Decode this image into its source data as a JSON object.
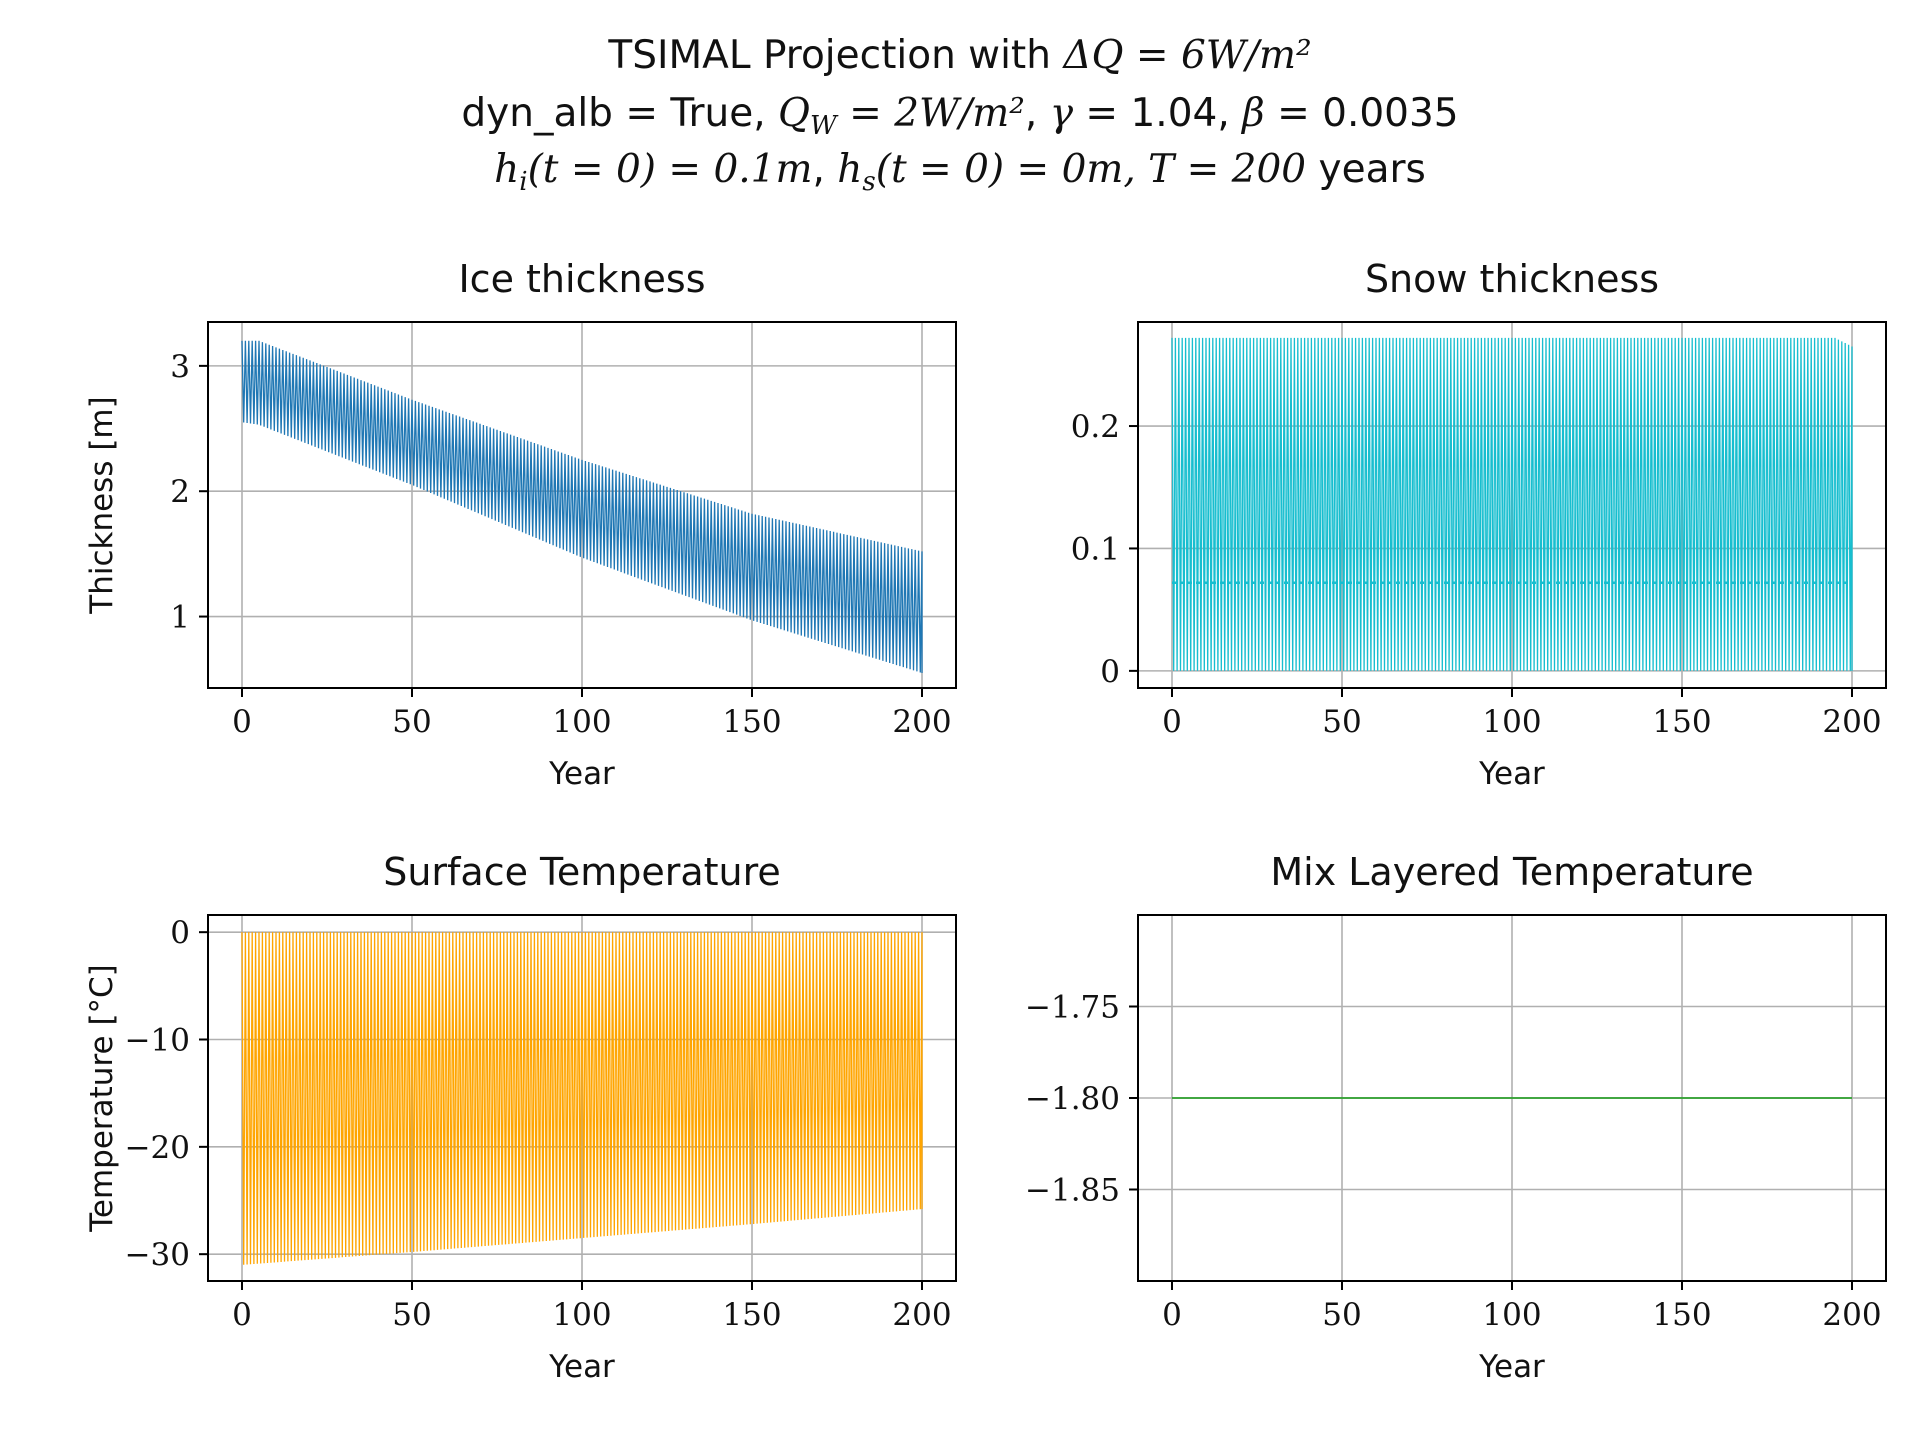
{
  "figure": {
    "title_line1_text": "TSIMAL Projection with ",
    "title_line1_math": "ΔQ = 6W/m²",
    "title_line2_a": "dyn_alb = True, ",
    "title_line2_qw": "Q",
    "title_line2_qw_sub": "W",
    "title_line2_qw_rest": " = 2W/m²",
    "title_line2_b": ", ",
    "title_line2_gamma": "γ",
    "title_line2_c": " = 1.04, ",
    "title_line2_beta": "β",
    "title_line2_d": " = 0.0035",
    "title_line3_hi": "h",
    "title_line3_hi_sub": "i",
    "title_line3_hi_rest": "(t = 0) = 0.1m",
    "title_line3_sep": ", ",
    "title_line3_hs": "h",
    "title_line3_hs_sub": "s",
    "title_line3_hs_rest": "(t = 0) = 0m, T = 200",
    "title_line3_years": " years"
  },
  "chart_data": [
    {
      "type": "line",
      "title": "Ice thickness",
      "xlabel": "Year",
      "ylabel": "Thickness [m]",
      "xlim": [
        -10,
        210
      ],
      "ylim": [
        0.43,
        3.35
      ],
      "xticks": [
        0,
        50,
        100,
        150,
        200
      ],
      "yticks": [
        1,
        2,
        3
      ],
      "grid": true,
      "color": "#1f77b4",
      "series": [
        {
          "x": [
            0,
            5,
            50,
            100,
            150,
            200
          ],
          "upper": [
            3.2,
            3.2,
            2.73,
            2.25,
            1.82,
            1.52
          ],
          "lower": [
            2.55,
            2.53,
            2.05,
            1.47,
            0.97,
            0.55
          ]
        }
      ],
      "cycles_per_year": 1
    },
    {
      "type": "line",
      "title": "Snow thickness",
      "xlabel": "Year",
      "ylabel": "",
      "xlim": [
        -10,
        210
      ],
      "ylim": [
        -0.014,
        0.285
      ],
      "xticks": [
        0,
        50,
        100,
        150,
        200
      ],
      "yticks": [
        0.0,
        0.1,
        0.2
      ],
      "grid": true,
      "color": "#17becf",
      "series": [
        {
          "x": [
            0,
            195,
            200
          ],
          "upper": [
            0.272,
            0.272,
            0.265
          ],
          "lower": [
            0.0,
            0.0,
            0.0
          ],
          "mid": 0.072
        }
      ],
      "cycles_per_year": 1
    },
    {
      "type": "line",
      "title": "Surface Temperature",
      "xlabel": "Year",
      "ylabel": "Temperature [°C]",
      "xlim": [
        -10,
        210
      ],
      "ylim": [
        -32.5,
        1.6
      ],
      "xticks": [
        0,
        50,
        100,
        150,
        200
      ],
      "yticks": [
        0,
        -10,
        -20,
        -30
      ],
      "grid": true,
      "color": "#ffa500",
      "series": [
        {
          "x": [
            0,
            50,
            100,
            150,
            200
          ],
          "upper": [
            0,
            0,
            0,
            0,
            0
          ],
          "lower": [
            -31.0,
            -29.8,
            -28.5,
            -27.2,
            -25.8
          ]
        }
      ],
      "cycles_per_year": 1
    },
    {
      "type": "line",
      "title": "Mix Layered Temperature",
      "xlabel": "Year",
      "ylabel": "",
      "xlim": [
        -10,
        210
      ],
      "ylim": [
        -1.9,
        -1.7
      ],
      "xticks": [
        0,
        50,
        100,
        150,
        200
      ],
      "yticks": [
        -1.75,
        -1.8,
        -1.85
      ],
      "ytick_labels": [
        "−1.75",
        "−1.80",
        "−1.85"
      ],
      "grid": true,
      "color": "#2ca02c",
      "series": [
        {
          "x": [
            0,
            200
          ],
          "y": [
            -1.8,
            -1.8
          ]
        }
      ]
    }
  ]
}
